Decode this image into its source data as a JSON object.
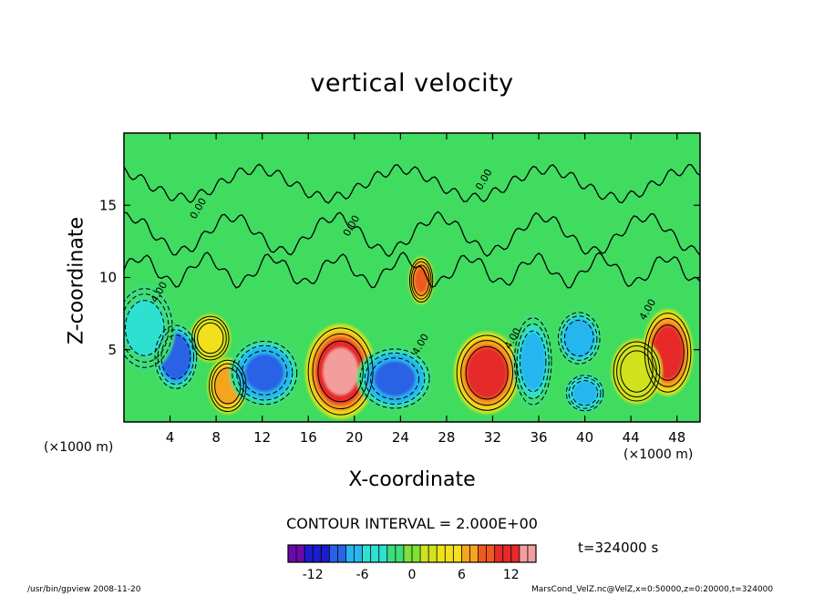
{
  "chart_data": {
    "type": "heatmap",
    "title": "vertical velocity",
    "xlabel": "X-coordinate",
    "ylabel": "Z-coordinate",
    "x_unit_left": "(×1000 m)",
    "x_unit_right": "(×1000 m)",
    "xlim": [
      0,
      50
    ],
    "ylim": [
      0,
      20
    ],
    "x_ticks": [
      4,
      8,
      12,
      16,
      20,
      24,
      28,
      32,
      36,
      40,
      44,
      48
    ],
    "y_ticks": [
      5,
      10,
      15
    ],
    "contour_interval_label": "CONTOUR INTERVAL = 2.000E+00",
    "contour_labels": [
      "4.00",
      "0.00"
    ],
    "time_label": "t=324000 s",
    "colorbar": {
      "min": -15,
      "max": 15,
      "ticks": [
        -12,
        -6,
        0,
        6,
        12
      ],
      "colors": [
        "#6a0aa8",
        "#1c1ccc",
        "#2a62e6",
        "#27b6ef",
        "#2fe0d0",
        "#3fdc7a",
        "#7fe03a",
        "#cfe21f",
        "#f2e01c",
        "#f5a51e",
        "#ee5a22",
        "#e62a2a",
        "#f49d9d"
      ]
    },
    "features": [
      {
        "x": 18.8,
        "z": 3.5,
        "w": 8.0,
        "peak": 13.5,
        "sx": 1.4,
        "sz": 2.2
      },
      {
        "x": 31.5,
        "z": 3.4,
        "w": 11.0,
        "peak": 12.0,
        "sx": 1.3,
        "sz": 1.9
      },
      {
        "x": 47.2,
        "z": 4.8,
        "w": 10.0,
        "peak": 12.0,
        "sx": 1.0,
        "sz": 2.0
      },
      {
        "x": 9.0,
        "z": 2.5,
        "w": 6.0,
        "peak": 8.0,
        "sx": 0.8,
        "sz": 1.3
      },
      {
        "x": 7.5,
        "z": 5.8,
        "w": 5.0,
        "peak": 5.0,
        "sx": 0.8,
        "sz": 1.1
      },
      {
        "x": 25.8,
        "z": 9.8,
        "w": 4.0,
        "peak": 9.0,
        "sx": 0.5,
        "sz": 1.1
      },
      {
        "x": 4.5,
        "z": 4.5,
        "w": 7.0,
        "peak": -10.0,
        "sx": 0.9,
        "sz": 1.6
      },
      {
        "x": 12.2,
        "z": 3.4,
        "w": 10.0,
        "peak": -9.0,
        "sx": 1.4,
        "sz": 1.6
      },
      {
        "x": 23.5,
        "z": 3.0,
        "w": 9.0,
        "peak": -9.0,
        "sx": 1.5,
        "sz": 1.5
      },
      {
        "x": 35.5,
        "z": 4.2,
        "w": 7.0,
        "peak": -6.0,
        "sx": 0.8,
        "sz": 2.2
      },
      {
        "x": 39.5,
        "z": 5.8,
        "w": 7.0,
        "peak": -8.0,
        "sx": 0.9,
        "sz": 1.3
      },
      {
        "x": 40.0,
        "z": 2.0,
        "w": 5.0,
        "peak": -7.0,
        "sx": 0.8,
        "sz": 0.9
      },
      {
        "x": 1.8,
        "z": 6.5,
        "w": 6.0,
        "peak": -5.0,
        "sx": 1.2,
        "sz": 2.0
      },
      {
        "x": 44.5,
        "z": 3.5,
        "w": 4.0,
        "peak": 3.0,
        "sx": 1.0,
        "sz": 1.5
      }
    ]
  },
  "footer": {
    "left": "/usr/bin/gpview   2008-11-20",
    "right": "MarsCond_VelZ.nc@VelZ,x=0:50000,z=0:20000,t=324000"
  }
}
